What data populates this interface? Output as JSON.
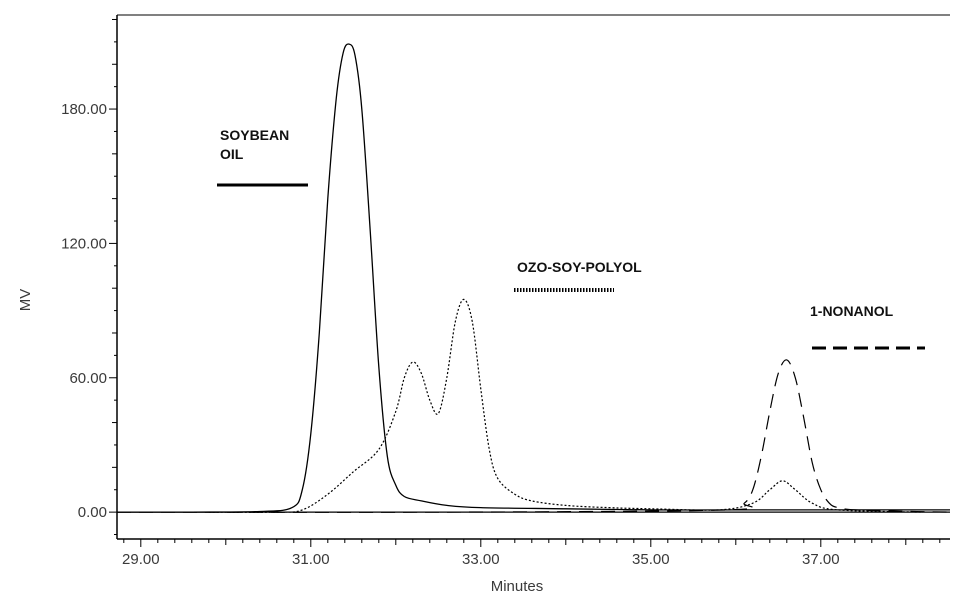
{
  "chart_data": {
    "type": "line",
    "title": "",
    "xlabel": "Minutes",
    "ylabel": "MV",
    "xlim": [
      28.72,
      38.52
    ],
    "ylim": [
      -12,
      222
    ],
    "x_ticks": [
      29,
      31,
      33,
      35,
      37
    ],
    "x_tick_labels": [
      "29.00",
      "31.00",
      "33.00",
      "35.00",
      "37.00"
    ],
    "y_ticks": [
      0,
      60,
      120,
      180
    ],
    "y_tick_labels": [
      "0.00",
      "60.00",
      "120.00",
      "180.00"
    ],
    "grid": false,
    "legend": [
      {
        "label_lines": [
          "SOYBEAN",
          "OIL"
        ],
        "dash": "solid"
      },
      {
        "label_lines": [
          "OZO-SOY-POLYOL"
        ],
        "dash": "dotted"
      },
      {
        "label_lines": [
          "1-NONANOL"
        ],
        "dash": "dashed"
      }
    ],
    "series": [
      {
        "dash": "solid",
        "x": [
          28.72,
          29.6,
          30.4,
          30.78,
          30.9,
          31.0,
          31.1,
          31.2,
          31.3,
          31.38,
          31.45,
          31.52,
          31.6,
          31.7,
          31.8,
          31.9,
          32.0,
          32.1,
          32.3,
          32.6,
          33.0,
          34.0,
          35.0,
          36.0,
          37.0,
          38.52
        ],
        "y": [
          0,
          0,
          0.3,
          2,
          10,
          35,
          80,
          140,
          185,
          205,
          209,
          204,
          180,
          125,
          65,
          25,
          12,
          7,
          5,
          3,
          2,
          1.5,
          1,
          1,
          1,
          1
        ]
      },
      {
        "dash": "dotted",
        "x": [
          29.8,
          30.6,
          30.9,
          31.2,
          31.5,
          31.8,
          32.0,
          32.1,
          32.2,
          32.3,
          32.4,
          32.5,
          32.6,
          32.7,
          32.8,
          32.9,
          33.0,
          33.1,
          33.2,
          33.4,
          33.6,
          34.0,
          34.5,
          35.0,
          35.8,
          36.2,
          36.4,
          36.55,
          36.7,
          36.9,
          37.2,
          38.2
        ],
        "y": [
          0,
          0,
          1,
          8,
          18,
          28,
          45,
          60,
          67,
          62,
          50,
          44,
          60,
          85,
          95,
          85,
          55,
          28,
          15,
          8,
          5,
          3,
          2,
          1.5,
          1,
          4,
          10,
          14,
          10,
          4,
          1,
          0
        ]
      },
      {
        "dash": "dashed",
        "x": [
          28.72,
          32.6,
          35.9,
          36.1,
          36.2,
          36.3,
          36.4,
          36.5,
          36.6,
          36.7,
          36.8,
          36.9,
          37.0,
          37.1,
          37.2,
          37.4,
          37.8,
          38.52
        ],
        "y": [
          0,
          0,
          1,
          4,
          10,
          25,
          45,
          62,
          68,
          60,
          42,
          22,
          10,
          4,
          2,
          1,
          0.5,
          0
        ]
      }
    ]
  }
}
